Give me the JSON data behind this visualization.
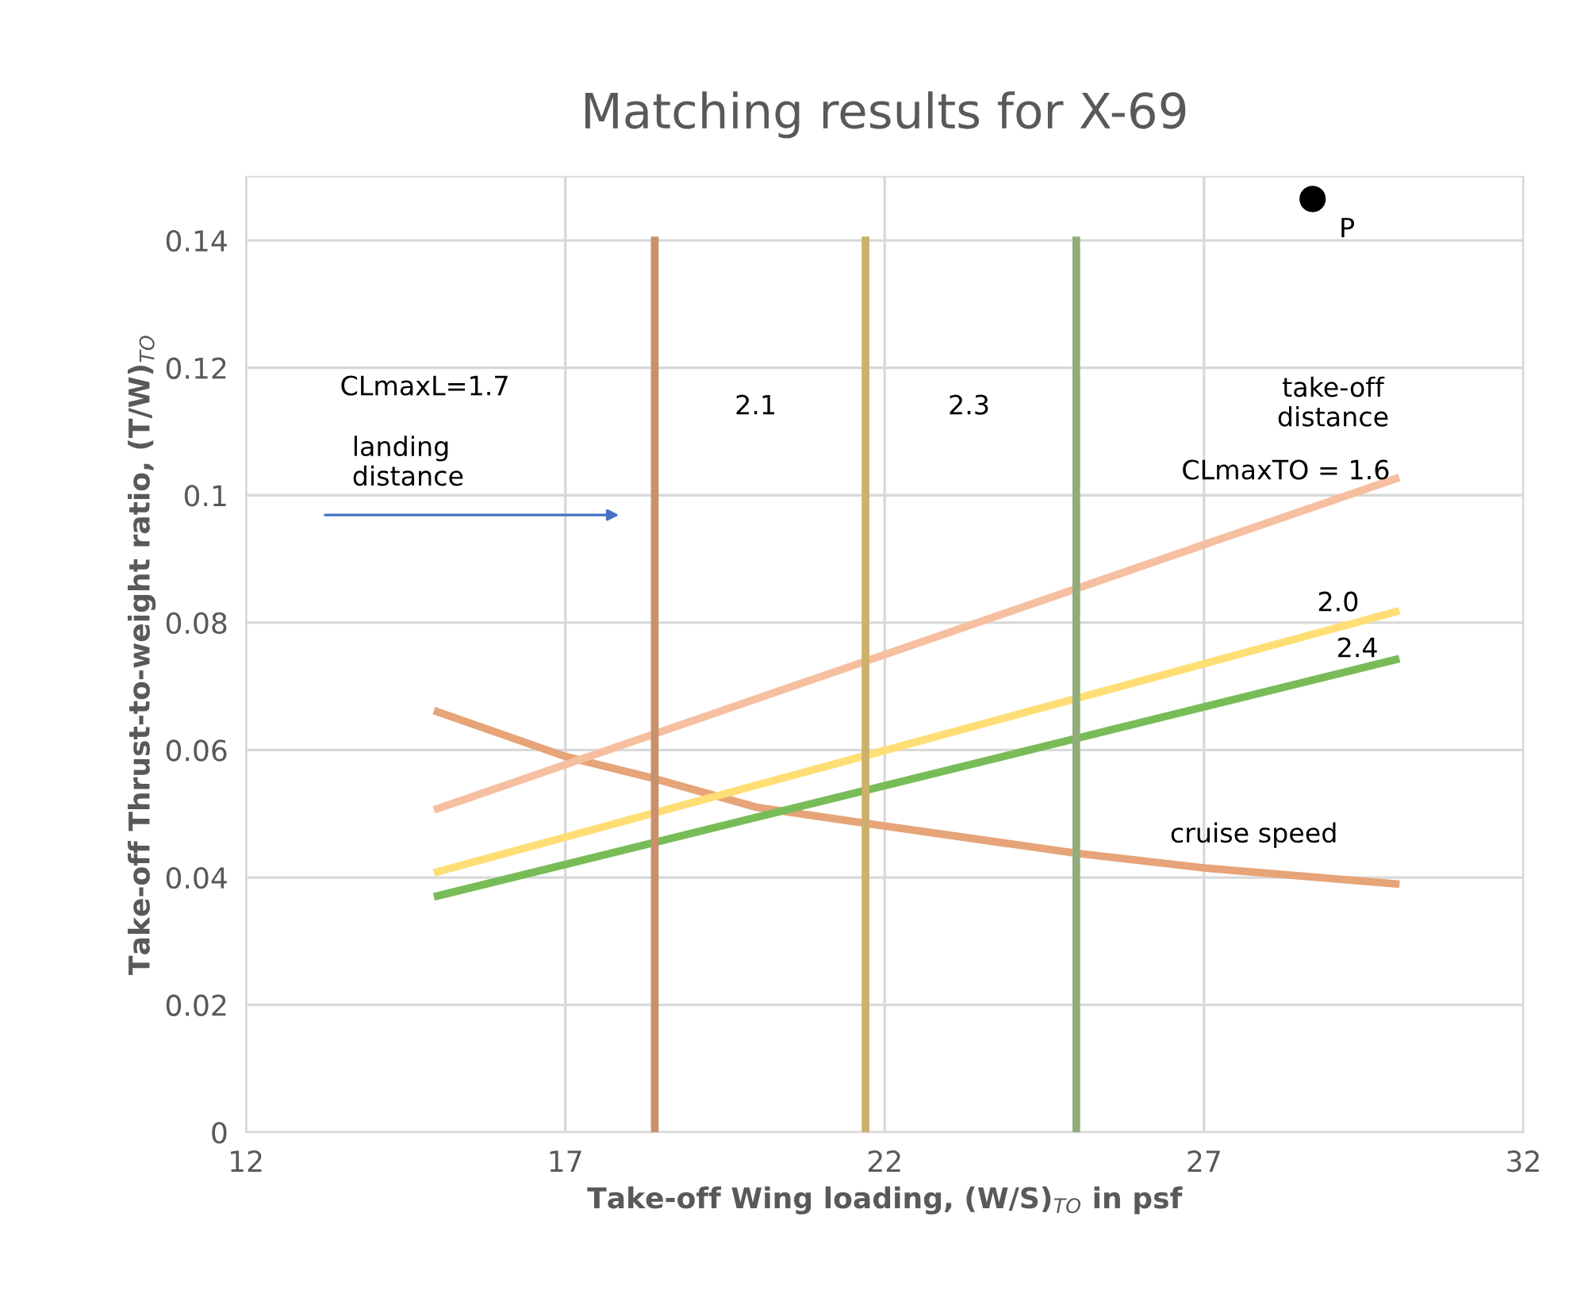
{
  "chart_data": {
    "type": "line",
    "title": "Matching results for X-69",
    "xlabel": "Take-off Wing loading, (W/S)$_{TO}$ in psf",
    "ylabel": "Take-off Thrust-to-weight ratio, (T/W)$_{TO}$",
    "xlim": [
      12,
      32
    ],
    "xticks": [
      12,
      17,
      22,
      27,
      32
    ],
    "ylim": [
      0,
      0.15
    ],
    "yticks": [
      0,
      0.02,
      0.04,
      0.06,
      0.08,
      0.1,
      0.12,
      0.14
    ],
    "grid": true,
    "legend": false,
    "marker": "none",
    "line_style": "solid",
    "series": [
      {
        "color": "#e6a478",
        "x": [
          15,
          17,
          18.4,
          20,
          21.7,
          25,
          27,
          30
        ],
        "values": [
          0.066,
          0.059,
          0.0555,
          0.051,
          0.0485,
          0.0438,
          0.0415,
          0.039
        ]
      },
      {
        "color": "#f6bfa0",
        "x": [
          15,
          30
        ],
        "values": [
          0.0508,
          0.1026
        ]
      },
      {
        "color": "#ffde75",
        "x": [
          15,
          30
        ],
        "values": [
          0.0409,
          0.0817
        ]
      },
      {
        "color": "#78bc58",
        "x": [
          15,
          30
        ],
        "values": [
          0.0371,
          0.0742
        ]
      },
      {
        "color": "#c8906c",
        "x": [
          18.4,
          18.4
        ],
        "values": [
          0,
          0.14
        ]
      },
      {
        "color": "#cdb06a",
        "x": [
          21.7,
          21.7
        ],
        "values": [
          0,
          0.14
        ]
      },
      {
        "color": "#93ac7c",
        "x": [
          25.0,
          25.0
        ],
        "values": [
          0,
          0.14
        ]
      },
      {
        "type": "scatter",
        "marker": "circle",
        "color": "#000000",
        "x": [
          28.7
        ],
        "values": [
          0.1465
        ]
      }
    ],
    "annotations": [
      "CLmaxL=1.7",
      "landing\ndistance",
      "2.1",
      "2.3",
      "take-off\ndistance",
      "CLmaxTO = 1.6",
      "2.0",
      "2.4",
      "cruise speed",
      {
        "text": "P",
        "x": 28.7,
        "y": 0.1465
      }
    ]
  }
}
